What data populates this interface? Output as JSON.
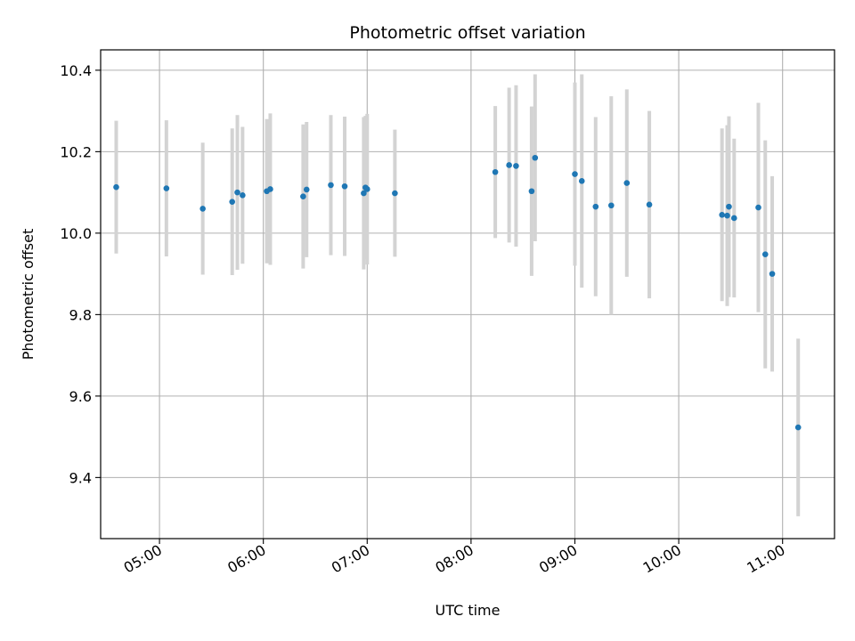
{
  "chart_data": {
    "type": "scatter",
    "title": "Photometric offset variation",
    "xlabel": "UTC time",
    "ylabel": "Photometric offset",
    "xlim": [
      "04:26",
      "11:30"
    ],
    "ylim": [
      9.25,
      10.45
    ],
    "x_ticks": [
      "05:00",
      "06:00",
      "07:00",
      "08:00",
      "09:00",
      "10:00",
      "11:00"
    ],
    "y_ticks": [
      9.4,
      9.6,
      9.8,
      10.0,
      10.2,
      10.4
    ],
    "grid": true,
    "colors": {
      "point": "#1f77b4",
      "errorbar": "#d3d3d3",
      "grid": "#b0b0b0"
    },
    "points": [
      {
        "x": "04:35",
        "y": 10.113,
        "yerr": 0.163
      },
      {
        "x": "05:04",
        "y": 10.11,
        "yerr": 0.167
      },
      {
        "x": "05:25",
        "y": 10.06,
        "yerr": 0.162
      },
      {
        "x": "05:42",
        "y": 10.077,
        "yerr": 0.18
      },
      {
        "x": "05:45",
        "y": 10.1,
        "yerr": 0.19
      },
      {
        "x": "05:48",
        "y": 10.093,
        "yerr": 0.168
      },
      {
        "x": "06:02",
        "y": 10.103,
        "yerr": 0.177
      },
      {
        "x": "06:04",
        "y": 10.108,
        "yerr": 0.186
      },
      {
        "x": "06:23",
        "y": 10.09,
        "yerr": 0.177
      },
      {
        "x": "06:25",
        "y": 10.107,
        "yerr": 0.166
      },
      {
        "x": "06:39",
        "y": 10.118,
        "yerr": 0.172
      },
      {
        "x": "06:47",
        "y": 10.115,
        "yerr": 0.171
      },
      {
        "x": "06:58",
        "y": 10.098,
        "yerr": 0.187
      },
      {
        "x": "06:59",
        "y": 10.112,
        "yerr": 0.176
      },
      {
        "x": "07:00",
        "y": 10.108,
        "yerr": 0.185
      },
      {
        "x": "07:16",
        "y": 10.098,
        "yerr": 0.156
      },
      {
        "x": "08:14",
        "y": 10.15,
        "yerr": 0.162
      },
      {
        "x": "08:22",
        "y": 10.167,
        "yerr": 0.19
      },
      {
        "x": "08:26",
        "y": 10.165,
        "yerr": 0.198
      },
      {
        "x": "08:35",
        "y": 10.103,
        "yerr": 0.208
      },
      {
        "x": "08:37",
        "y": 10.185,
        "yerr": 0.205
      },
      {
        "x": "09:00",
        "y": 10.145,
        "yerr": 0.225
      },
      {
        "x": "09:04",
        "y": 10.128,
        "yerr": 0.262
      },
      {
        "x": "09:12",
        "y": 10.065,
        "yerr": 0.22
      },
      {
        "x": "09:21",
        "y": 10.068,
        "yerr": 0.268
      },
      {
        "x": "09:30",
        "y": 10.123,
        "yerr": 0.23
      },
      {
        "x": "09:43",
        "y": 10.07,
        "yerr": 0.23
      },
      {
        "x": "10:25",
        "y": 10.045,
        "yerr": 0.212
      },
      {
        "x": "10:28",
        "y": 10.043,
        "yerr": 0.222
      },
      {
        "x": "10:29",
        "y": 10.065,
        "yerr": 0.222
      },
      {
        "x": "10:32",
        "y": 10.037,
        "yerr": 0.195
      },
      {
        "x": "10:46",
        "y": 10.063,
        "yerr": 0.257
      },
      {
        "x": "10:50",
        "y": 9.948,
        "yerr": 0.28
      },
      {
        "x": "10:54",
        "y": 9.9,
        "yerr": 0.24
      },
      {
        "x": "11:09",
        "y": 9.523,
        "yerr": 0.218
      }
    ]
  }
}
